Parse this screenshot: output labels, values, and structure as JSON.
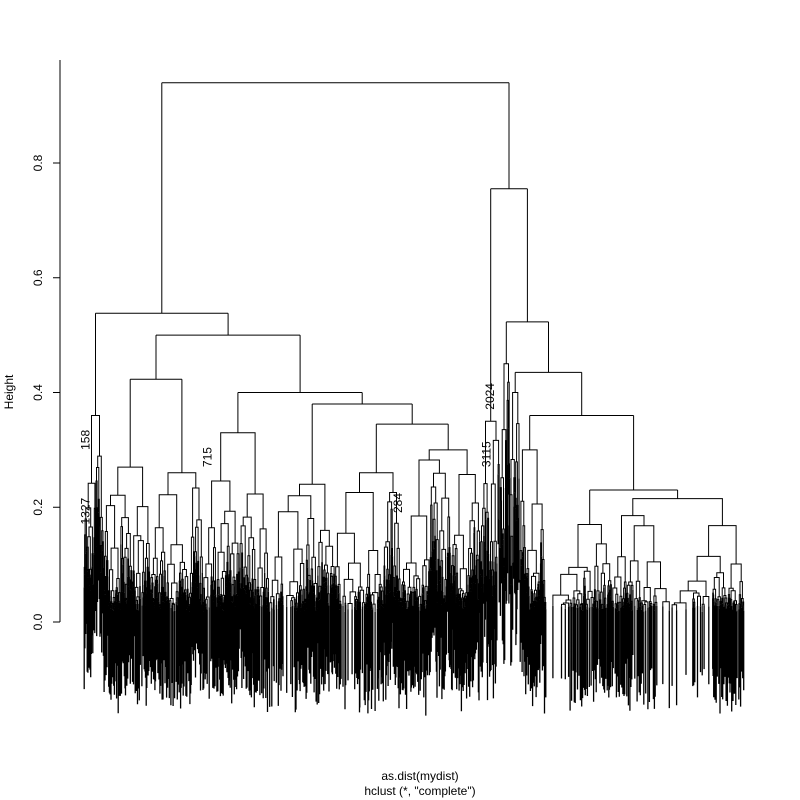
{
  "chart_data": {
    "type": "dendrogram",
    "title": "",
    "xlabel": "as.dist(mydist)",
    "subtitle": "hclust (*, \"complete\")",
    "ylabel": "Height",
    "ylim": [
      0,
      0.98
    ],
    "yticks": [
      0.0,
      0.2,
      0.4,
      0.6,
      0.8
    ],
    "ytick_labels": [
      "0.0",
      "0.2",
      "0.4",
      "0.6",
      "0.8"
    ],
    "leaf_order_range": [
      0,
      100
    ],
    "tree": {
      "h": 0.94,
      "children": [
        {
          "h": 0.538,
          "children": [
            {
              "h": 0.36,
              "span": [
                0,
                3
              ]
            },
            {
              "h": 0.5,
              "children": [
                {
                  "h": 0.423,
                  "children": [
                    {
                      "h": 0.27,
                      "span": [
                        3,
                        10
                      ]
                    },
                    {
                      "h": 0.26,
                      "span": [
                        10,
                        18
                      ]
                    }
                  ]
                },
                {
                  "h": 0.4,
                  "children": [
                    {
                      "h": 0.33,
                      "span": [
                        18,
                        28
                      ]
                    },
                    {
                      "h": 0.38,
                      "children": [
                        {
                          "h": 0.24,
                          "span": [
                            28,
                            38
                          ]
                        },
                        {
                          "h": 0.345,
                          "children": [
                            {
                              "h": 0.26,
                              "span": [
                                38,
                                48
                              ]
                            },
                            {
                              "h": 0.3,
                              "span": [
                                48,
                                60
                              ]
                            }
                          ]
                        }
                      ]
                    }
                  ]
                }
              ]
            }
          ]
        },
        {
          "h": 0.755,
          "children": [
            {
              "h": 0.35,
              "span": [
                60,
                63
              ]
            },
            {
              "h": 0.523,
              "children": [
                {
                  "h": 0.45,
                  "span": [
                    63,
                    64.5
                  ]
                },
                {
                  "h": 0.435,
                  "children": [
                    {
                      "h": 0.4,
                      "span": [
                        64.5,
                        66
                      ]
                    },
                    {
                      "h": 0.36,
                      "children": [
                        {
                          "h": 0.3,
                          "span": [
                            66,
                            70
                          ]
                        },
                        {
                          "h": 0.23,
                          "children": [
                            {
                              "h": 0.17,
                              "span": [
                                70,
                                80
                              ]
                            },
                            {
                              "h": 0.215,
                              "span": [
                                80,
                                100
                              ]
                            }
                          ]
                        }
                      ]
                    }
                  ]
                }
              ]
            }
          ]
        }
      ]
    },
    "visible_leaf_labels": [
      {
        "text": "2024",
        "leaf": 61.5,
        "h": 0.37
      },
      {
        "text": "3115",
        "leaf": 61.0,
        "h": 0.27
      },
      {
        "text": "715",
        "leaf": 18.7,
        "h": 0.27
      },
      {
        "text": "284",
        "leaf": 47.6,
        "h": 0.19
      },
      {
        "text": "1327",
        "leaf": 0.2,
        "h": 0.17
      },
      {
        "text": "158",
        "leaf": 0.2,
        "h": 0.3
      }
    ]
  }
}
